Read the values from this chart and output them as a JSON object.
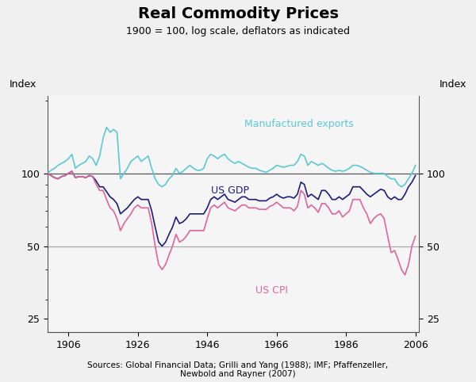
{
  "title": "Real Commodity Prices",
  "subtitle": "1900 = 100, log scale, deflators as indicated",
  "ylabel_left": "Index",
  "ylabel_right": "Index",
  "source_text": "Sources: Global Financial Data; Grilli and Yang (1988); IMF; Pfaffenzeller,\nNewbold and Rayner (2007)",
  "fig_background": "#f0f0f0",
  "plot_background": "#f5f5f5",
  "yticks": [
    25,
    50,
    100
  ],
  "ylim": [
    22,
    210
  ],
  "xlim": [
    1900,
    2007
  ],
  "xticks": [
    1906,
    1926,
    1946,
    1966,
    1986,
    2006
  ],
  "hline_dark": "#555555",
  "hline_light": "#aaaaaa",
  "color_mfg": "#5bc8d4",
  "color_gdp": "#1c1e7a",
  "color_cpi": "#e0649a",
  "label_mfg": "Manufactured exports",
  "label_gdp": "US GDP",
  "label_cpi": "US CPI",
  "years": [
    1900,
    1901,
    1902,
    1903,
    1904,
    1905,
    1906,
    1907,
    1908,
    1909,
    1910,
    1911,
    1912,
    1913,
    1914,
    1915,
    1916,
    1917,
    1918,
    1919,
    1920,
    1921,
    1922,
    1923,
    1924,
    1925,
    1926,
    1927,
    1928,
    1929,
    1930,
    1931,
    1932,
    1933,
    1934,
    1935,
    1936,
    1937,
    1938,
    1939,
    1940,
    1941,
    1942,
    1943,
    1944,
    1945,
    1946,
    1947,
    1948,
    1949,
    1950,
    1951,
    1952,
    1953,
    1954,
    1955,
    1956,
    1957,
    1958,
    1959,
    1960,
    1961,
    1962,
    1963,
    1964,
    1965,
    1966,
    1967,
    1968,
    1969,
    1970,
    1971,
    1972,
    1973,
    1974,
    1975,
    1976,
    1977,
    1978,
    1979,
    1980,
    1981,
    1982,
    1983,
    1984,
    1985,
    1986,
    1987,
    1988,
    1989,
    1990,
    1991,
    1992,
    1993,
    1994,
    1995,
    1996,
    1997,
    1998,
    1999,
    2000,
    2001,
    2002,
    2003,
    2004,
    2005,
    2006
  ],
  "mfg_exports": [
    100,
    103,
    105,
    108,
    110,
    112,
    115,
    120,
    105,
    108,
    110,
    112,
    118,
    115,
    108,
    118,
    140,
    155,
    148,
    152,
    148,
    95,
    100,
    105,
    112,
    115,
    118,
    112,
    115,
    118,
    105,
    95,
    90,
    88,
    90,
    95,
    98,
    105,
    100,
    102,
    105,
    108,
    105,
    103,
    103,
    105,
    115,
    120,
    118,
    115,
    118,
    120,
    115,
    112,
    110,
    112,
    110,
    108,
    106,
    105,
    105,
    103,
    102,
    101,
    103,
    105,
    108,
    107,
    106,
    107,
    108,
    108,
    112,
    120,
    118,
    108,
    112,
    110,
    108,
    110,
    108,
    105,
    103,
    102,
    103,
    102,
    103,
    105,
    108,
    108,
    107,
    105,
    103,
    101,
    100,
    100,
    100,
    100,
    97,
    95,
    95,
    90,
    88,
    90,
    95,
    100,
    108
  ],
  "us_gdp": [
    100,
    98,
    96,
    95,
    97,
    98,
    100,
    102,
    96,
    97,
    97,
    96,
    98,
    97,
    93,
    88,
    88,
    84,
    80,
    78,
    75,
    68,
    70,
    72,
    75,
    78,
    80,
    78,
    78,
    78,
    70,
    60,
    52,
    50,
    52,
    56,
    60,
    66,
    62,
    63,
    65,
    68,
    68,
    68,
    68,
    68,
    72,
    78,
    80,
    78,
    80,
    82,
    78,
    77,
    76,
    78,
    80,
    80,
    78,
    78,
    78,
    77,
    77,
    77,
    79,
    80,
    82,
    80,
    79,
    80,
    80,
    79,
    82,
    92,
    90,
    80,
    82,
    80,
    78,
    85,
    85,
    82,
    78,
    78,
    80,
    78,
    80,
    82,
    88,
    88,
    88,
    85,
    82,
    80,
    82,
    84,
    86,
    85,
    80,
    78,
    80,
    78,
    78,
    82,
    88,
    92,
    98
  ],
  "us_cpi": [
    100,
    98,
    96,
    95,
    97,
    98,
    100,
    102,
    96,
    97,
    97,
    96,
    98,
    97,
    90,
    85,
    85,
    78,
    72,
    70,
    65,
    58,
    62,
    65,
    68,
    72,
    74,
    72,
    72,
    72,
    62,
    50,
    42,
    40,
    42,
    46,
    50,
    56,
    52,
    53,
    55,
    58,
    58,
    58,
    58,
    58,
    65,
    72,
    74,
    72,
    74,
    76,
    72,
    71,
    70,
    72,
    74,
    74,
    72,
    72,
    72,
    71,
    71,
    71,
    73,
    74,
    76,
    74,
    72,
    72,
    72,
    70,
    73,
    85,
    82,
    72,
    74,
    72,
    69,
    75,
    75,
    72,
    68,
    68,
    70,
    66,
    68,
    70,
    78,
    78,
    78,
    72,
    68,
    62,
    65,
    67,
    68,
    65,
    55,
    47,
    48,
    44,
    40,
    38,
    42,
    50,
    55
  ]
}
